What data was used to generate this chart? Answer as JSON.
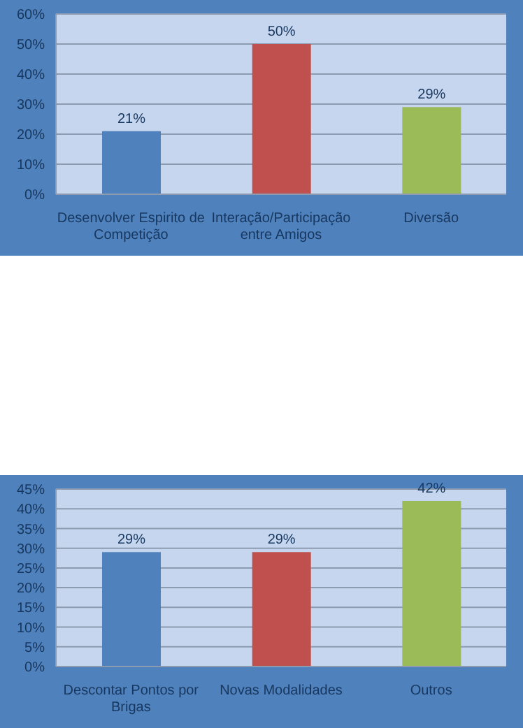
{
  "chart_data": [
    {
      "type": "bar",
      "categories": [
        "Desenvolver Espirito de Competição",
        "Interação/Participação entre Amigos",
        "Diversão"
      ],
      "values": [
        21,
        50,
        29
      ],
      "colors": [
        "#4f81bd",
        "#c0504d",
        "#9bbb59"
      ],
      "value_labels": [
        "21%",
        "50%",
        "29%"
      ],
      "ylim": [
        0,
        60
      ],
      "yticks": [
        {
          "value": 0,
          "label": "0%"
        },
        {
          "value": 10,
          "label": "10%"
        },
        {
          "value": 20,
          "label": "20%"
        },
        {
          "value": 30,
          "label": "30%"
        },
        {
          "value": 40,
          "label": "40%"
        },
        {
          "value": 50,
          "label": "50%"
        },
        {
          "value": 60,
          "label": "60%"
        }
      ],
      "grid": "y"
    },
    {
      "type": "bar",
      "categories": [
        "Descontar Pontos por Brigas",
        "Novas Modalidades",
        "Outros"
      ],
      "values": [
        29,
        29,
        42
      ],
      "colors": [
        "#4f81bd",
        "#c0504d",
        "#9bbb59"
      ],
      "value_labels": [
        "29%",
        "29%",
        "42%"
      ],
      "ylim": [
        0,
        45
      ],
      "yticks": [
        {
          "value": 0,
          "label": "0%"
        },
        {
          "value": 5,
          "label": "5%"
        },
        {
          "value": 10,
          "label": "10%"
        },
        {
          "value": 15,
          "label": "15%"
        },
        {
          "value": 20,
          "label": "20%"
        },
        {
          "value": 25,
          "label": "25%"
        },
        {
          "value": 30,
          "label": "30%"
        },
        {
          "value": 35,
          "label": "35%"
        },
        {
          "value": 40,
          "label": "40%"
        },
        {
          "value": 45,
          "label": "45%"
        }
      ],
      "grid": "y"
    }
  ]
}
